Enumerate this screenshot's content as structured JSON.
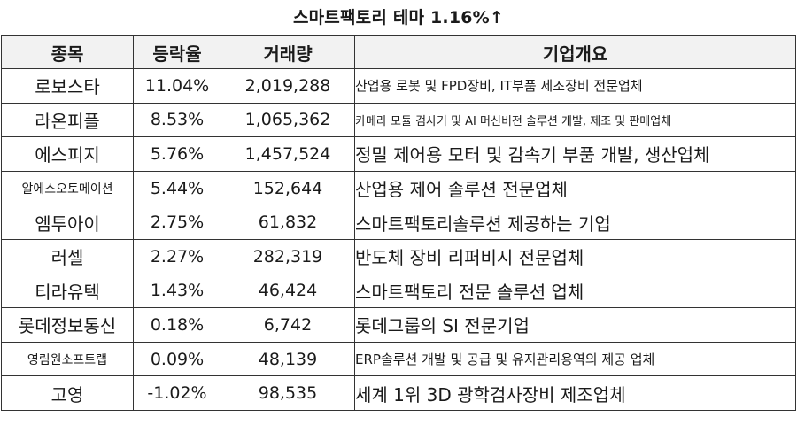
{
  "title": "스마트팩토리 테마 1.16%↑",
  "headers": {
    "name": "종목",
    "rate": "등락율",
    "volume": "거래량",
    "desc": "기업개요"
  },
  "rows": [
    {
      "name": "로보스타",
      "rate": "11.04%",
      "volume": "2,019,288",
      "desc": "산업용 로봇 및 FPD장비, IT부품 제조장비 전문업체"
    },
    {
      "name": "라온피플",
      "rate": "8.53%",
      "volume": "1,065,362",
      "desc": "카메라 모듈 검사기 및 AI 머신비전 솔루션 개발, 제조 및 판매업체"
    },
    {
      "name": "에스피지",
      "rate": "5.76%",
      "volume": "1,457,524",
      "desc": "정밀 제어용 모터 및 감속기 부품 개발, 생산업체"
    },
    {
      "name": "알에스오토메이션",
      "rate": "5.44%",
      "volume": "152,644",
      "desc": "산업용 제어 솔루션 전문업체"
    },
    {
      "name": "엠투아이",
      "rate": "2.75%",
      "volume": "61,832",
      "desc": "스마트팩토리솔루션 제공하는 기업"
    },
    {
      "name": "러셀",
      "rate": "2.27%",
      "volume": "282,319",
      "desc": "반도체 장비 리퍼비시 전문업체"
    },
    {
      "name": "티라유텍",
      "rate": "1.43%",
      "volume": "46,424",
      "desc": "스마트팩토리 전문 솔루션 업체"
    },
    {
      "name": "롯데정보통신",
      "rate": "0.18%",
      "volume": "6,742",
      "desc": "롯데그룹의 SI 전문기업"
    },
    {
      "name": "영림원소프트랩",
      "rate": "0.09%",
      "volume": "48,139",
      "desc": "ERP솔루션 개발 및 공급 및 유지관리용역의 제공 업체"
    },
    {
      "name": "고영",
      "rate": "-1.02%",
      "volume": "98,535",
      "desc": "세계 1위 3D 광학검사장비 제조업체"
    }
  ]
}
